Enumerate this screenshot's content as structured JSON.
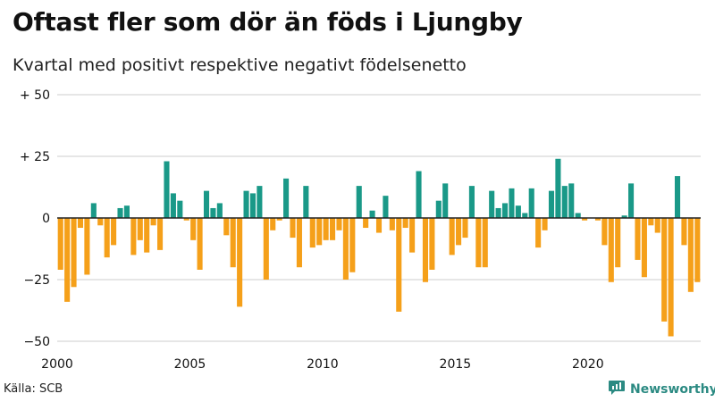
{
  "title": "Oftast fler som dör än föds i Ljungby",
  "subtitle": "Kvartal med positivt respektive negativt födelsenetto",
  "source": "Källa: SCB",
  "brand": "Newsworthy",
  "chart_data": {
    "type": "bar",
    "title": "Oftast fler som dör än föds i Ljungby",
    "subtitle": "Kvartal med positivt respektive negativt födelsenetto",
    "xlabel": "",
    "ylabel": "",
    "ylim": [
      -50,
      50
    ],
    "xlim": [
      2000,
      2024.25
    ],
    "grid": true,
    "y_ticks": [
      50,
      25,
      0,
      -25,
      -50
    ],
    "y_tick_labels": [
      "+ 50",
      "+ 25",
      "0",
      "−25",
      "−50"
    ],
    "x_ticks": [
      2000,
      2005,
      2010,
      2015,
      2020
    ],
    "x_tick_labels": [
      "2000",
      "2005",
      "2010",
      "2015",
      "2020"
    ],
    "colors": {
      "positive": "#1a9988",
      "negative": "#f5a01a",
      "grid": "#cccccc",
      "axis": "#222222"
    },
    "start_year": 2000,
    "periods_per_year": 4,
    "values": [
      -21,
      -34,
      -28,
      -4,
      -23,
      6,
      -3,
      -16,
      -11,
      4,
      5,
      -15,
      -9,
      -14,
      -3,
      -13,
      23,
      10,
      7,
      -1,
      -9,
      -21,
      11,
      4,
      6,
      -7,
      -20,
      -36,
      11,
      10,
      13,
      -25,
      -5,
      -1,
      16,
      -8,
      -20,
      13,
      -12,
      -11,
      -9,
      -9,
      -5,
      -25,
      -22,
      13,
      -4,
      3,
      -6,
      9,
      -5,
      -38,
      -4,
      -14,
      19,
      -26,
      -21,
      7,
      14,
      -15,
      -11,
      -8,
      13,
      -20,
      -20,
      11,
      4,
      6,
      12,
      5,
      2,
      12,
      -12,
      -5,
      11,
      24,
      13,
      14,
      2,
      -1,
      0,
      -1,
      -11,
      -26,
      -20,
      1,
      14,
      -17,
      -24,
      -3,
      -6,
      -42,
      -48,
      17,
      -11,
      -30,
      -26
    ]
  }
}
